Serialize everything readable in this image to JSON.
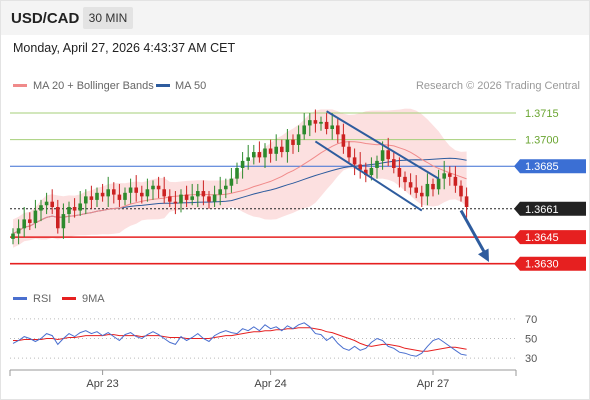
{
  "header": {
    "symbol": "USD/CAD",
    "timeframe": "30 MIN"
  },
  "timestamp": "Monday, April 27, 2026 4:43:37 AM CET",
  "legend": {
    "ma20_label": "MA 20 + Bollinger Bands",
    "ma50_label": "MA 50",
    "credit": "Research © 2026 Trading Central",
    "rsi_label": "RSI",
    "rsi_ma_label": "9MA"
  },
  "colors": {
    "ma20": "#f08a8a",
    "ma50": "#2e5c9e",
    "bollinger_fill": "#fbdada",
    "resistance": "#a6cf7a",
    "resistance_text": "#6aa531",
    "pivot": "#3b6fd4",
    "support": "#e62020",
    "current": "#222222",
    "trend": "#2e5c9e",
    "candle_up": "#2d8a2d",
    "candle_down": "#cc2222",
    "rsi": "#4a6fcf",
    "rsi_ma": "#e62020"
  },
  "chart_data": [
    {
      "type": "candlestick",
      "title": "USD/CAD",
      "timeframe": "30 MIN",
      "ylim": [
        1.3618,
        1.3728
      ],
      "x_ticks": [
        {
          "label": "Apr 23",
          "index": 16
        },
        {
          "label": "Apr 24",
          "index": 46
        },
        {
          "label": "Apr 27",
          "index": 75
        }
      ],
      "levels": [
        {
          "value": 1.3715,
          "label": "1.3715",
          "kind": "resistance"
        },
        {
          "value": 1.37,
          "label": "1.3700",
          "kind": "resistance"
        },
        {
          "value": 1.3685,
          "label": "1.3685",
          "kind": "pivot"
        },
        {
          "value": 1.3661,
          "label": "1.3661",
          "kind": "current"
        },
        {
          "value": 1.3645,
          "label": "1.3645",
          "kind": "support"
        },
        {
          "value": 1.363,
          "label": "1.3630",
          "kind": "support"
        }
      ],
      "close_prices": [
        1.3647,
        1.365,
        1.3655,
        1.3653,
        1.366,
        1.3663,
        1.3665,
        1.3662,
        1.365,
        1.3658,
        1.3662,
        1.366,
        1.3664,
        1.3668,
        1.3666,
        1.367,
        1.3668,
        1.3672,
        1.3669,
        1.3666,
        1.367,
        1.3673,
        1.367,
        1.3668,
        1.3672,
        1.3674,
        1.3672,
        1.3668,
        1.3665,
        1.3664,
        1.3669,
        1.3666,
        1.3668,
        1.3671,
        1.3668,
        1.3665,
        1.3669,
        1.3672,
        1.3674,
        1.3678,
        1.3684,
        1.3688,
        1.369,
        1.3693,
        1.369,
        1.3695,
        1.3692,
        1.3696,
        1.3693,
        1.37,
        1.3697,
        1.3703,
        1.3708,
        1.3711,
        1.3709,
        1.371,
        1.3706,
        1.3708,
        1.3703,
        1.3696,
        1.369,
        1.3686,
        1.3683,
        1.368,
        1.3684,
        1.3688,
        1.3694,
        1.3689,
        1.3684,
        1.3679,
        1.3676,
        1.3673,
        1.367,
        1.3668,
        1.3675,
        1.3672,
        1.3678,
        1.3681,
        1.3679,
        1.3674,
        1.3668,
        1.3662
      ],
      "trend_lines": [
        {
          "from": {
            "index": 56,
            "value": 1.3716
          },
          "to": {
            "index": 76,
            "value": 1.3678
          }
        },
        {
          "from": {
            "index": 54,
            "value": 1.3699
          },
          "to": {
            "index": 73,
            "value": 1.366
          }
        }
      ],
      "forecast_arrow": {
        "from": {
          "index": 80,
          "value": 1.366
        },
        "to": {
          "index": 85,
          "value": 1.3631
        }
      }
    },
    {
      "type": "line",
      "name": "RSI",
      "ylim": [
        24,
        74
      ],
      "y_ticks": [
        70,
        50,
        30
      ],
      "series": [
        {
          "name": "RSI",
          "values": [
            45,
            48,
            52,
            50,
            47,
            50,
            55,
            53,
            44,
            50,
            55,
            52,
            56,
            58,
            55,
            57,
            53,
            56,
            52,
            48,
            54,
            56,
            52,
            50,
            54,
            57,
            54,
            50,
            46,
            44,
            52,
            48,
            51,
            55,
            50,
            47,
            53,
            56,
            58,
            56,
            55,
            60,
            58,
            62,
            58,
            64,
            60,
            62,
            58,
            63,
            60,
            64,
            66,
            62,
            55,
            54,
            48,
            52,
            45,
            40,
            38,
            42,
            38,
            40,
            46,
            50,
            48,
            42,
            40,
            36,
            35,
            33,
            32,
            35,
            42,
            48,
            50,
            46,
            42,
            38,
            34,
            33
          ]
        },
        {
          "name": "9MA",
          "values": [
            48,
            48,
            49,
            49,
            49,
            49,
            50,
            50,
            49,
            50,
            51,
            51,
            52,
            53,
            53,
            53,
            53,
            54,
            54,
            53,
            53,
            53,
            53,
            52,
            53,
            53,
            53,
            52,
            51,
            51,
            51,
            50,
            50,
            50,
            50,
            50,
            51,
            52,
            53,
            53,
            54,
            55,
            56,
            57,
            57,
            58,
            58,
            59,
            59,
            60,
            60,
            61,
            61,
            61,
            60,
            59,
            57,
            56,
            54,
            52,
            50,
            48,
            45,
            43,
            42,
            43,
            44,
            44,
            43,
            42,
            40,
            39,
            38,
            37,
            37,
            38,
            39,
            40,
            41,
            41,
            40,
            39
          ]
        }
      ]
    }
  ]
}
